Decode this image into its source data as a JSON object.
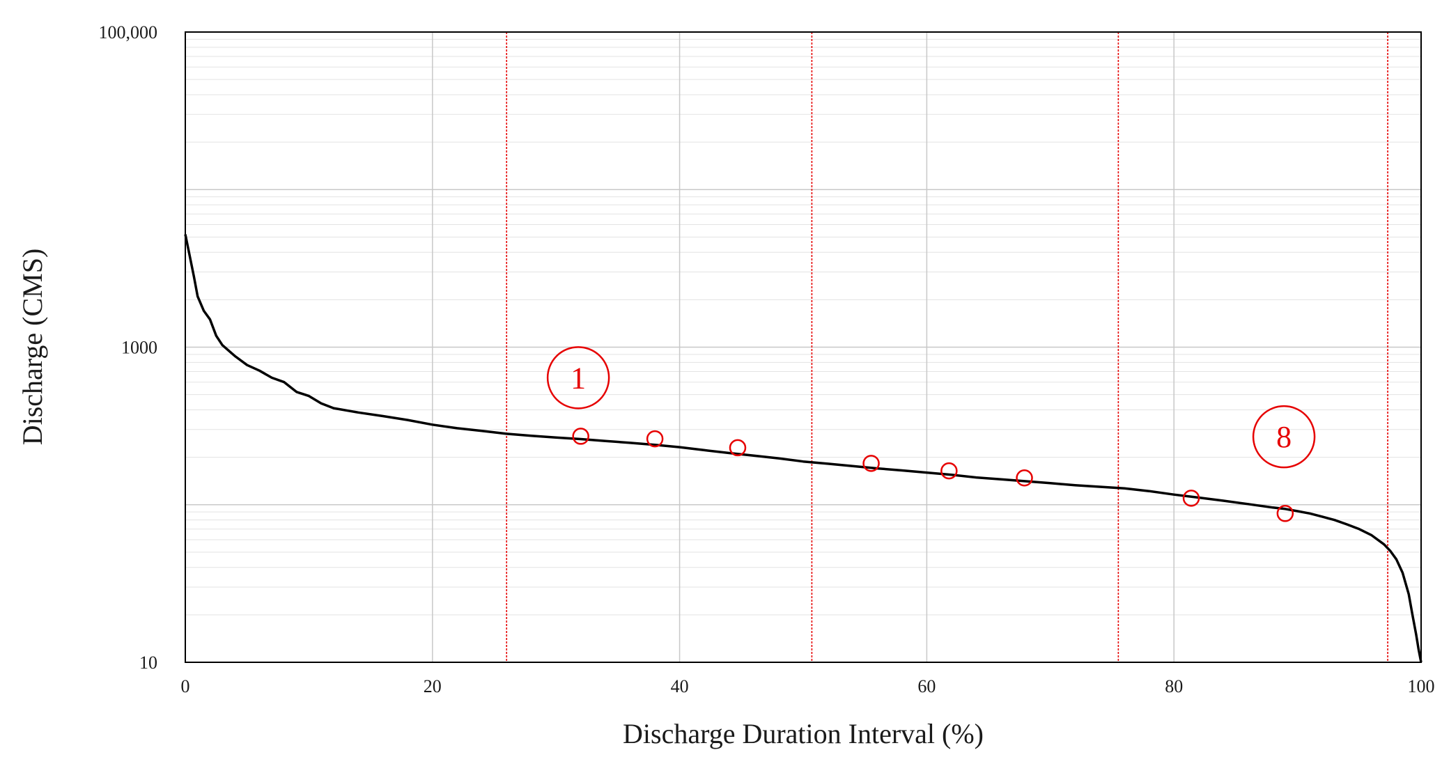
{
  "chart_data": {
    "type": "line",
    "title": "",
    "xlabel": "Discharge Duration Interval (%)",
    "ylabel": "Discharge (CMS)",
    "xlim": [
      0,
      100
    ],
    "ylim": [
      10,
      100000
    ],
    "yscale": "log",
    "grid": true,
    "x_ticks": [
      0,
      20,
      40,
      60,
      80,
      100
    ],
    "x_tick_labels": [
      "0",
      "20",
      "40",
      "60",
      "80",
      "100"
    ],
    "y_ticks": [
      10,
      1000,
      100000
    ],
    "y_tick_labels": [
      "10",
      "1000",
      "100,000"
    ],
    "colors": {
      "curve": "#000000",
      "markers": "#e60000",
      "interval_lines": "#e60000",
      "major_grid": "#c8c8c8",
      "minor_grid": "#e3e3e3"
    },
    "series": [
      {
        "values_x": [
          0,
          0.3,
          0.7,
          1,
          1.5,
          2,
          2.5,
          3,
          4,
          5,
          6,
          7,
          8,
          9,
          10,
          11,
          12,
          14,
          16,
          18,
          20,
          22,
          24,
          26,
          28,
          30,
          32,
          34,
          36,
          38,
          40,
          42,
          44,
          46,
          48,
          50,
          52,
          54,
          56,
          58,
          60,
          62,
          64,
          66,
          68,
          70,
          72,
          74,
          76,
          78,
          80,
          82,
          84,
          86,
          88,
          89,
          90,
          91,
          92,
          93,
          94,
          95,
          96,
          97,
          97.5,
          98,
          98.5,
          99,
          99.3,
          99.6,
          99.8,
          100
        ],
        "values_y": [
          5200,
          4000,
          2800,
          2100,
          1700,
          1500,
          1180,
          1030,
          880,
          770,
          710,
          640,
          600,
          520,
          490,
          440,
          410,
          385,
          365,
          345,
          322,
          306,
          294,
          282,
          274,
          267,
          261,
          254,
          247,
          240,
          232,
          222,
          213,
          205,
          197,
          188,
          182,
          176,
          170,
          165,
          160,
          155,
          149,
          145,
          141,
          137,
          133,
          130,
          127,
          122,
          116,
          111,
          106,
          101,
          96,
          94,
          91,
          88,
          84,
          80,
          75,
          70,
          64,
          56,
          51,
          45,
          37,
          27,
          20,
          15,
          12,
          10
        ]
      }
    ],
    "markers": {
      "x": [
        32,
        38,
        44.7,
        55.5,
        61.8,
        67.9,
        81.4,
        89
      ],
      "y": [
        272,
        262,
        230,
        183,
        164,
        148,
        110,
        88
      ]
    },
    "interval_lines_x": [
      26,
      50.7,
      75.5,
      97.3
    ],
    "annotations": [
      {
        "text": "1",
        "x": 31.8,
        "y": 640
      },
      {
        "text": "8",
        "x": 88.9,
        "y": 270
      }
    ]
  }
}
